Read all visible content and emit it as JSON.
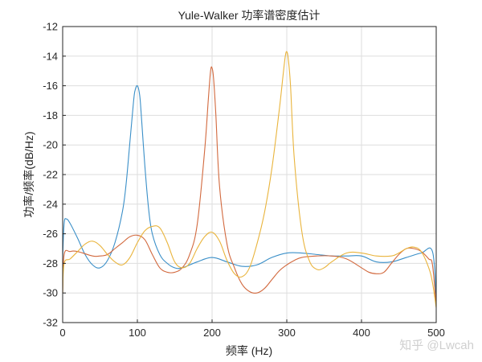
{
  "watermark": "知乎 @Lwcah",
  "chart_data": {
    "type": "line",
    "title": "Yule-Walker 功率谱密度估计",
    "xlabel": "频率 (Hz)",
    "ylabel": "功率/频率(dB/Hz)",
    "xlim": [
      0,
      500
    ],
    "ylim": [
      -32,
      -12
    ],
    "xticks": [
      0,
      100,
      200,
      300,
      400,
      500
    ],
    "yticks": [
      -32,
      -30,
      -28,
      -26,
      -24,
      -22,
      -20,
      -18,
      -16,
      -14,
      -12
    ],
    "grid": true,
    "colors": [
      "#3a8fc8",
      "#d2693e",
      "#e9b43c"
    ],
    "series": [
      {
        "x": [
          0,
          2,
          5,
          10,
          20,
          30,
          40,
          50,
          60,
          70,
          80,
          85,
          90,
          95,
          97,
          100,
          103,
          105,
          110,
          115,
          120,
          130,
          140,
          150,
          160,
          180,
          200,
          220,
          240,
          260,
          280,
          300,
          320,
          340,
          360,
          380,
          400,
          420,
          440,
          460,
          480,
          495,
          500
        ],
        "y": [
          -27.6,
          -25.3,
          -25.0,
          -25.3,
          -26.3,
          -27.4,
          -28.1,
          -28.3,
          -27.8,
          -26.6,
          -24.5,
          -22.6,
          -19.8,
          -17.0,
          -16.3,
          -16.0,
          -16.6,
          -17.8,
          -21.4,
          -24.3,
          -26.0,
          -27.4,
          -28.0,
          -28.3,
          -28.3,
          -27.9,
          -27.6,
          -27.9,
          -28.2,
          -28.1,
          -27.6,
          -27.3,
          -27.3,
          -27.4,
          -27.5,
          -27.5,
          -27.5,
          -27.9,
          -27.9,
          -27.6,
          -27.3,
          -27.2,
          -30.5
        ]
      },
      {
        "x": [
          0,
          2,
          10,
          20,
          40,
          50,
          60,
          70,
          80,
          90,
          100,
          110,
          120,
          130,
          140,
          150,
          160,
          170,
          180,
          190,
          195,
          198,
          200,
          202,
          205,
          210,
          220,
          230,
          240,
          250,
          260,
          270,
          280,
          290,
          300,
          310,
          320,
          340,
          360,
          380,
          400,
          410,
          420,
          430,
          440,
          450,
          460,
          470,
          480,
          490,
          495,
          500
        ],
        "y": [
          -30.0,
          -27.4,
          -27.2,
          -27.2,
          -27.5,
          -27.5,
          -27.4,
          -27.0,
          -26.6,
          -26.2,
          -26.1,
          -26.4,
          -27.4,
          -28.3,
          -28.6,
          -28.6,
          -28.3,
          -27.4,
          -25.4,
          -20.4,
          -16.9,
          -15.0,
          -14.8,
          -15.5,
          -17.9,
          -22.8,
          -26.7,
          -28.3,
          -29.4,
          -29.9,
          -30.0,
          -29.7,
          -29.1,
          -28.5,
          -28.1,
          -27.8,
          -27.6,
          -27.5,
          -27.5,
          -27.7,
          -28.3,
          -28.6,
          -28.7,
          -28.6,
          -28.0,
          -27.4,
          -27.0,
          -27.0,
          -27.2,
          -27.7,
          -28.1,
          -30.9
        ]
      },
      {
        "x": [
          0,
          2,
          10,
          20,
          30,
          40,
          50,
          60,
          70,
          80,
          90,
          100,
          110,
          120,
          130,
          140,
          150,
          160,
          170,
          180,
          190,
          200,
          210,
          220,
          230,
          240,
          250,
          260,
          270,
          280,
          290,
          295,
          298,
          300,
          302,
          305,
          310,
          320,
          330,
          340,
          350,
          360,
          380,
          400,
          420,
          440,
          450,
          460,
          470,
          480,
          490,
          495,
          500
        ],
        "y": [
          -30.0,
          -28.0,
          -27.7,
          -27.2,
          -26.7,
          -26.5,
          -26.8,
          -27.4,
          -27.9,
          -28.1,
          -27.6,
          -26.6,
          -25.8,
          -25.5,
          -25.6,
          -26.6,
          -27.9,
          -28.3,
          -28.0,
          -27.0,
          -26.2,
          -25.9,
          -26.5,
          -27.8,
          -28.7,
          -28.9,
          -28.3,
          -26.7,
          -24.6,
          -21.6,
          -17.6,
          -15.3,
          -14.0,
          -13.7,
          -14.2,
          -16.0,
          -20.9,
          -25.8,
          -27.8,
          -28.4,
          -28.3,
          -27.9,
          -27.3,
          -27.3,
          -27.5,
          -27.5,
          -27.3,
          -27.0,
          -26.9,
          -27.2,
          -28.3,
          -29.3,
          -31.0
        ]
      }
    ]
  }
}
